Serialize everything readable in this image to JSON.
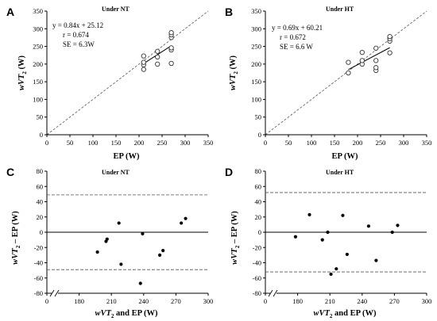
{
  "chart_data": [
    {
      "type": "scatter",
      "panel": "A",
      "title": "Under NT",
      "xlabel": "EP (W)",
      "ylabel_main": "wVT",
      "ylabel_sub": "2",
      "ylabel_unit": " (W)",
      "xlim": [
        0,
        350
      ],
      "ylim": [
        0,
        350
      ],
      "xticks": [
        "0",
        "50",
        "100",
        "150",
        "200",
        "250",
        "300",
        "350"
      ],
      "yticks": [
        "0",
        "50",
        "100",
        "150",
        "200",
        "250",
        "300",
        "350"
      ],
      "annotation": [
        "y = 0.84x + 25.12",
        "r = 0.674",
        "SE = 6.3W"
      ],
      "identity_line": true,
      "regression": {
        "slope": 0.84,
        "intercept": 25.12,
        "x_range": [
          210,
          270
        ]
      },
      "points": [
        {
          "x": 210,
          "y": 198
        },
        {
          "x": 210,
          "y": 185
        },
        {
          "x": 210,
          "y": 205
        },
        {
          "x": 210,
          "y": 223
        },
        {
          "x": 240,
          "y": 220
        },
        {
          "x": 240,
          "y": 200
        },
        {
          "x": 240,
          "y": 236
        },
        {
          "x": 270,
          "y": 202
        },
        {
          "x": 270,
          "y": 240
        },
        {
          "x": 270,
          "y": 246
        },
        {
          "x": 270,
          "y": 275
        },
        {
          "x": 270,
          "y": 283
        },
        {
          "x": 270,
          "y": 289
        }
      ]
    },
    {
      "type": "scatter",
      "panel": "B",
      "title": "Under HT",
      "xlabel": "EP (W)",
      "ylabel_main": "wVT",
      "ylabel_sub": "2",
      "ylabel_unit": " (W)",
      "xlim": [
        0,
        350
      ],
      "ylim": [
        0,
        350
      ],
      "xticks": [
        "0",
        "50",
        "100",
        "150",
        "200",
        "250",
        "300",
        "350"
      ],
      "yticks": [
        "0",
        "50",
        "100",
        "150",
        "200",
        "250",
        "300",
        "350"
      ],
      "annotation": [
        "y = 0.69x + 60.21",
        "r = 0.672",
        "SE = 6.6 W"
      ],
      "identity_line": true,
      "regression": {
        "slope": 0.69,
        "intercept": 60.21,
        "x_range": [
          180,
          270
        ]
      },
      "points": [
        {
          "x": 180,
          "y": 175
        },
        {
          "x": 180,
          "y": 205
        },
        {
          "x": 210,
          "y": 200
        },
        {
          "x": 210,
          "y": 210
        },
        {
          "x": 210,
          "y": 233
        },
        {
          "x": 240,
          "y": 182
        },
        {
          "x": 240,
          "y": 190
        },
        {
          "x": 240,
          "y": 210
        },
        {
          "x": 240,
          "y": 245
        },
        {
          "x": 270,
          "y": 232
        },
        {
          "x": 270,
          "y": 265
        },
        {
          "x": 270,
          "y": 272
        },
        {
          "x": 270,
          "y": 278
        }
      ]
    },
    {
      "type": "scatter",
      "panel": "C",
      "title": "Under NT",
      "xlabel_main": "wVT",
      "xlabel_sub": "2",
      "xlabel_rest": " and EP (W)",
      "ylabel_main": "wVT",
      "ylabel_sub": "2",
      "ylabel_unit": " – EP (W)",
      "xlim": [
        150,
        300
      ],
      "ylim": [
        -80,
        80
      ],
      "xticks": [
        "0",
        "180",
        "210",
        "240",
        "270",
        "300"
      ],
      "yticks": [
        "-80",
        "-60",
        "-40",
        "-20",
        "0",
        "20",
        "40",
        "60",
        "80"
      ],
      "axis_break": true,
      "mean_line": 0,
      "limits_of_agreement": [
        49,
        -49
      ],
      "points": [
        {
          "x": 197,
          "y": -26
        },
        {
          "x": 205,
          "y": -12
        },
        {
          "x": 206,
          "y": -9
        },
        {
          "x": 217,
          "y": 12
        },
        {
          "x": 219,
          "y": -42
        },
        {
          "x": 237,
          "y": -67
        },
        {
          "x": 239,
          "y": -2
        },
        {
          "x": 255,
          "y": -30
        },
        {
          "x": 258,
          "y": -24
        },
        {
          "x": 275,
          "y": 12
        },
        {
          "x": 279,
          "y": 18
        }
      ]
    },
    {
      "type": "scatter",
      "panel": "D",
      "title": "Under HT",
      "xlabel_main": "wVT",
      "xlabel_sub": "2",
      "xlabel_rest": " and EP (W)",
      "ylabel_main": "wVT",
      "ylabel_sub": "2",
      "ylabel_unit": " – EP (W)",
      "xlim": [
        150,
        300
      ],
      "ylim": [
        -80,
        80
      ],
      "xticks": [
        "0",
        "180",
        "210",
        "240",
        "270",
        "300"
      ],
      "yticks": [
        "-80",
        "-60",
        "-40",
        "-20",
        "0",
        "20",
        "40",
        "60",
        "80"
      ],
      "axis_break": true,
      "mean_line": 0,
      "limits_of_agreement": [
        52,
        -52
      ],
      "points": [
        {
          "x": 178,
          "y": -6
        },
        {
          "x": 191,
          "y": 23
        },
        {
          "x": 203,
          "y": -10
        },
        {
          "x": 208,
          "y": 0
        },
        {
          "x": 211,
          "y": -55
        },
        {
          "x": 216,
          "y": -48
        },
        {
          "x": 222,
          "y": 22
        },
        {
          "x": 226,
          "y": -29
        },
        {
          "x": 246,
          "y": 8
        },
        {
          "x": 253,
          "y": -37
        },
        {
          "x": 268,
          "y": 0
        },
        {
          "x": 273,
          "y": 9
        }
      ]
    }
  ]
}
